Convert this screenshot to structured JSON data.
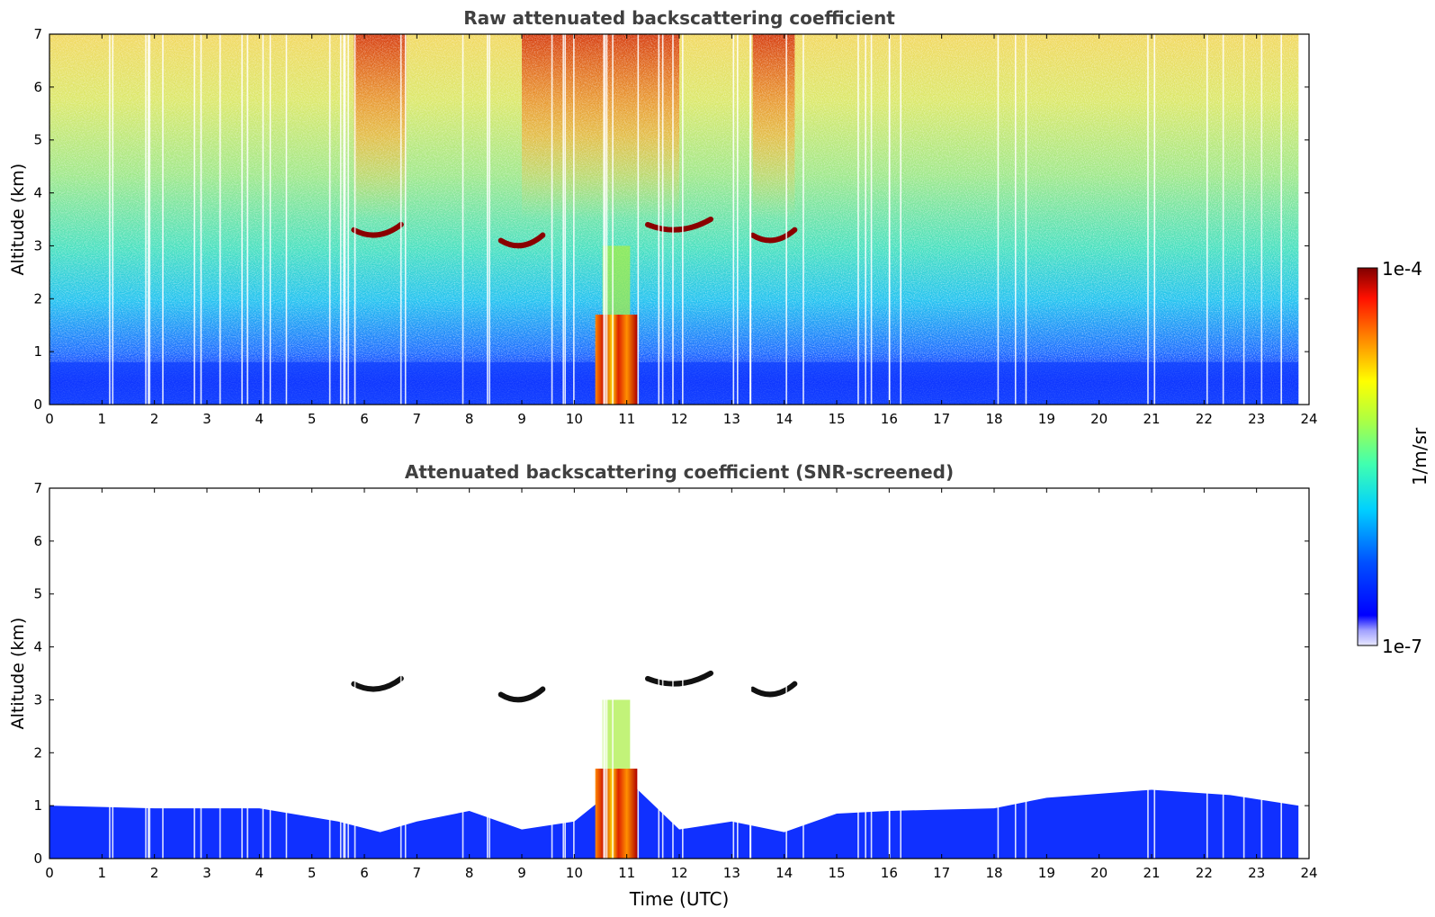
{
  "chart_data": [
    {
      "type": "heatmap",
      "title": "Raw attenuated backscattering coefficient",
      "xlabel": "",
      "ylabel": "Altitude (km)",
      "xlim": [
        0,
        24
      ],
      "ylim": [
        0,
        7
      ],
      "xticks": [
        "0",
        "1",
        "2",
        "3",
        "4",
        "5",
        "6",
        "7",
        "8",
        "9",
        "10",
        "11",
        "12",
        "13",
        "14",
        "15",
        "16",
        "17",
        "18",
        "19",
        "20",
        "21",
        "22",
        "23",
        "24"
      ],
      "yticks": [
        "0",
        "1",
        "2",
        "3",
        "4",
        "5",
        "6",
        "7"
      ],
      "colormap": "jet",
      "clim": [
        "1e-7",
        "1e-4"
      ],
      "features": [
        {
          "kind": "boundary-layer",
          "time_start": 0,
          "time_end": 23.8,
          "altitude_top_km": 0.8
        },
        {
          "kind": "cloud-column",
          "time_start": 10.4,
          "time_end": 11.2,
          "altitude_top_km": 1.7
        },
        {
          "kind": "cloud-layer",
          "time_start": 5.8,
          "time_end": 6.7,
          "altitude_km": 3.3
        },
        {
          "kind": "cloud-layer",
          "time_start": 8.6,
          "time_end": 9.4,
          "altitude_km": 3.1
        },
        {
          "kind": "cloud-layer",
          "time_start": 11.4,
          "time_end": 12.6,
          "altitude_km": 3.4
        },
        {
          "kind": "cloud-layer",
          "time_start": 13.4,
          "time_end": 14.2,
          "altitude_km": 3.2
        },
        {
          "kind": "high-signal-noise",
          "time_start": 5.8,
          "time_end": 6.8,
          "altitude_km": 6.0
        },
        {
          "kind": "high-signal-noise",
          "time_start": 9.0,
          "time_end": 12.0,
          "altitude_km": 6.0
        },
        {
          "kind": "high-signal-noise",
          "time_start": 13.4,
          "time_end": 14.2,
          "altitude_km": 6.0
        }
      ]
    },
    {
      "type": "heatmap",
      "title": "Attenuated backscattering coefficient (SNR-screened)",
      "xlabel": "Time (UTC)",
      "ylabel": "Altitude (km)",
      "xlim": [
        0,
        24
      ],
      "ylim": [
        0,
        7
      ],
      "xticks": [
        "0",
        "1",
        "2",
        "3",
        "4",
        "5",
        "6",
        "7",
        "8",
        "9",
        "10",
        "11",
        "12",
        "13",
        "14",
        "15",
        "16",
        "17",
        "18",
        "19",
        "20",
        "21",
        "22",
        "23",
        "24"
      ],
      "yticks": [
        "0",
        "1",
        "2",
        "3",
        "4",
        "5",
        "6",
        "7"
      ],
      "colormap": "jet",
      "clim": [
        "1e-7",
        "1e-4"
      ],
      "boundary_layer_top_km": [
        [
          0,
          1.0
        ],
        [
          2,
          0.95
        ],
        [
          4,
          0.95
        ],
        [
          5.5,
          0.7
        ],
        [
          6.3,
          0.5
        ],
        [
          7,
          0.7
        ],
        [
          8,
          0.9
        ],
        [
          9,
          0.55
        ],
        [
          10,
          0.7
        ],
        [
          11,
          1.5
        ],
        [
          12,
          0.55
        ],
        [
          13,
          0.7
        ],
        [
          14,
          0.5
        ],
        [
          15,
          0.85
        ],
        [
          16,
          0.9
        ],
        [
          18,
          0.95
        ],
        [
          19,
          1.15
        ],
        [
          21,
          1.3
        ],
        [
          22.5,
          1.2
        ],
        [
          23.8,
          1.0
        ]
      ],
      "features": [
        {
          "kind": "cloud-column",
          "time_start": 10.4,
          "time_end": 11.2,
          "altitude_top_km": 1.7
        },
        {
          "kind": "cloud-layer",
          "time_start": 5.8,
          "time_end": 6.7,
          "altitude_km": 3.3
        },
        {
          "kind": "cloud-layer",
          "time_start": 8.6,
          "time_end": 9.4,
          "altitude_km": 3.1
        },
        {
          "kind": "cloud-layer",
          "time_start": 11.4,
          "time_end": 12.6,
          "altitude_km": 3.4
        },
        {
          "kind": "cloud-layer",
          "time_start": 13.4,
          "time_end": 14.2,
          "altitude_km": 3.2
        }
      ]
    }
  ],
  "colorbar": {
    "label": "1/m/sr",
    "max_label": "1e-4",
    "min_label": "1e-7"
  },
  "colors": {
    "jet_low": "#0000ff",
    "jet_mid": "#00ffff",
    "jet_high": "#ff0000",
    "jet_max": "#800000",
    "title_gray": "#404040"
  }
}
